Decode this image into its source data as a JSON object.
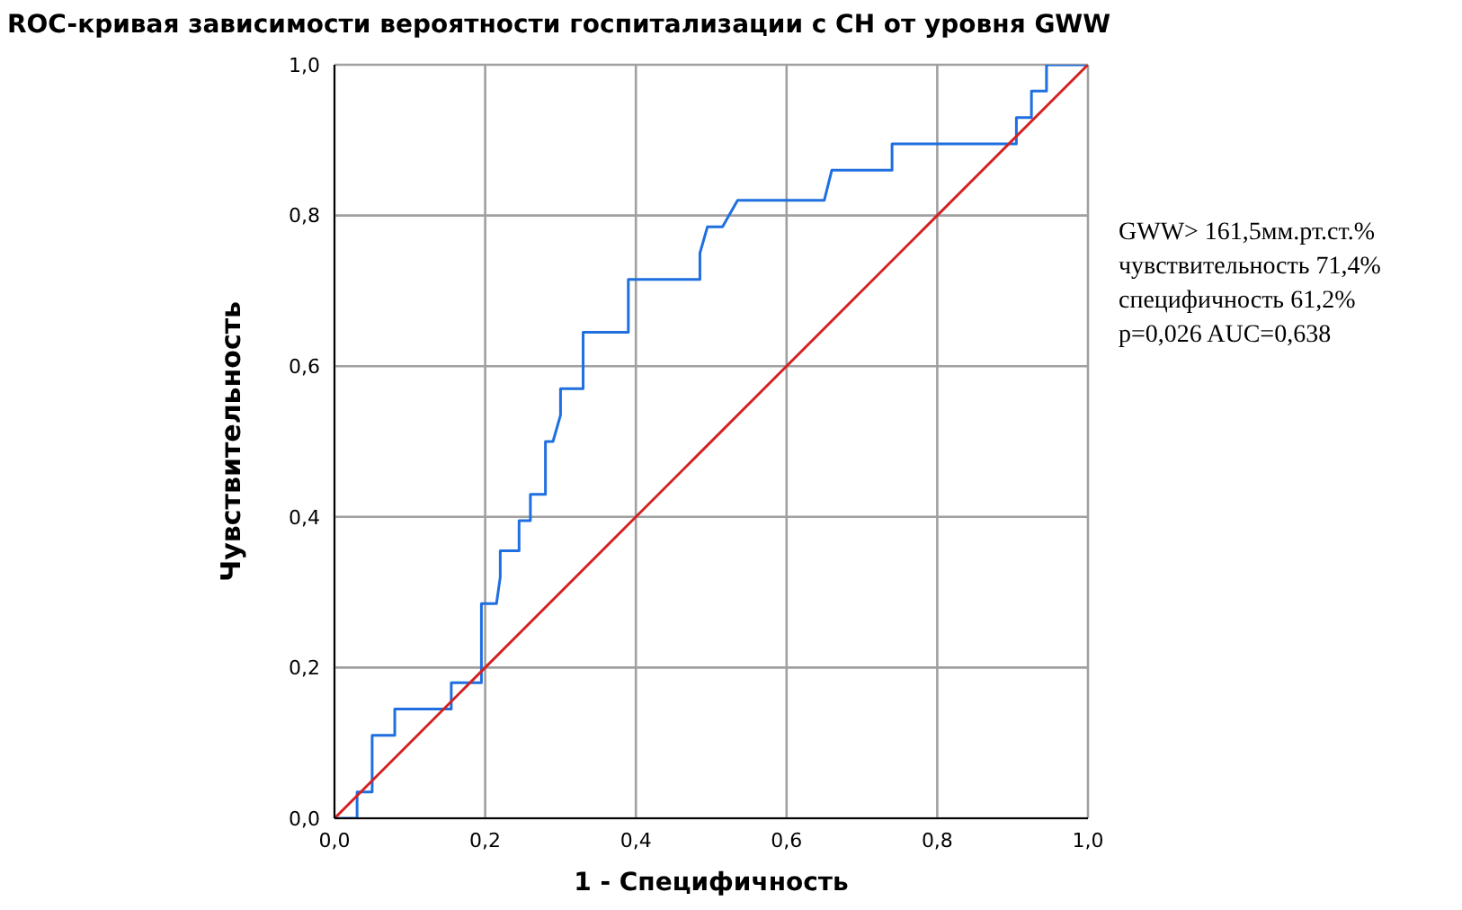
{
  "chart_data": {
    "type": "step",
    "title": "ROC-кривая зависимости вероятности госпитализации с СН от уровня GWW",
    "xlabel": "1 - Специфичность",
    "ylabel": "Чувствительность",
    "series": [
      {
        "type": "line",
        "color": "#1f6fe0",
        "x": [
          0,
          0.03,
          0.03,
          0.05,
          0.05,
          0.08,
          0.08,
          0.155,
          0.155,
          0.195,
          0.195,
          0.215,
          0.22,
          0.22,
          0.245,
          0.245,
          0.26,
          0.26,
          0.28,
          0.28,
          0.29,
          0.3,
          0.3,
          0.33,
          0.33,
          0.39,
          0.39,
          0.485,
          0.485,
          0.495,
          0.515,
          0.535,
          0.65,
          0.66,
          0.74,
          0.74,
          0.905,
          0.905,
          0.925,
          0.925,
          0.945,
          0.945,
          1
        ],
        "values": [
          0,
          0,
          0.035,
          0.035,
          0.11,
          0.11,
          0.145,
          0.145,
          0.18,
          0.18,
          0.285,
          0.285,
          0.32,
          0.355,
          0.355,
          0.395,
          0.395,
          0.43,
          0.43,
          0.5,
          0.5,
          0.535,
          0.57,
          0.57,
          0.645,
          0.645,
          0.715,
          0.715,
          0.75,
          0.785,
          0.785,
          0.82,
          0.82,
          0.86,
          0.86,
          0.895,
          0.895,
          0.93,
          0.93,
          0.965,
          0.965,
          1,
          1
        ]
      },
      {
        "type": "line",
        "color": "#d62020",
        "x": [
          0,
          1
        ],
        "values": [
          0,
          1
        ]
      }
    ],
    "xlim": [
      0,
      1
    ],
    "ylim": [
      0,
      1
    ],
    "xticks": [
      {
        "value": 0,
        "label": "0,0"
      },
      {
        "value": 0.2,
        "label": "0,2"
      },
      {
        "value": 0.4,
        "label": "0,4"
      },
      {
        "value": 0.6,
        "label": "0,6"
      },
      {
        "value": 0.8,
        "label": "0,8"
      },
      {
        "value": 1,
        "label": "1,0"
      }
    ],
    "yticks": [
      {
        "value": 0,
        "label": "0,0"
      },
      {
        "value": 0.2,
        "label": "0,2"
      },
      {
        "value": 0.4,
        "label": "0,4"
      },
      {
        "value": 0.6,
        "label": "0,6"
      },
      {
        "value": 0.8,
        "label": "0,8"
      },
      {
        "value": 1,
        "label": "1,0"
      }
    ],
    "grid": true,
    "legend": false,
    "marker": "none",
    "annotations": [
      "GWW> 161,5мм.рт.ст.%",
      "чувствительность 71,4%",
      "специфичность 61,2%",
      "p=0,026 AUC=0,638"
    ]
  }
}
